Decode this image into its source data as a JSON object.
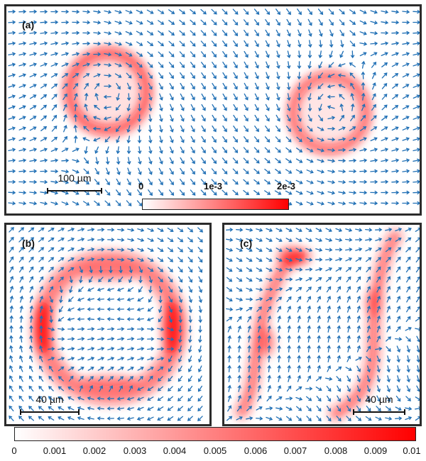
{
  "panels": [
    {
      "label": "(a)",
      "scale_label": "100 µm"
    },
    {
      "label": "(b)",
      "scale_label": "40 µm"
    },
    {
      "label": "(c)",
      "scale_label": "40 µm"
    }
  ],
  "colorbar_small": {
    "ticks": [
      "0",
      "1e-3",
      "2e-3"
    ],
    "colors": [
      "#ffffff",
      "#ff0000"
    ]
  },
  "colorbar_big": {
    "ticks": [
      "0",
      "0.001",
      "0.002",
      "0.003",
      "0.004",
      "0.005",
      "0.006",
      "0.007",
      "0.008",
      "0.009",
      "0.01"
    ],
    "colors": [
      "#ffffff",
      "#ff0000"
    ]
  },
  "arrow_color": "#1f6fb5"
}
